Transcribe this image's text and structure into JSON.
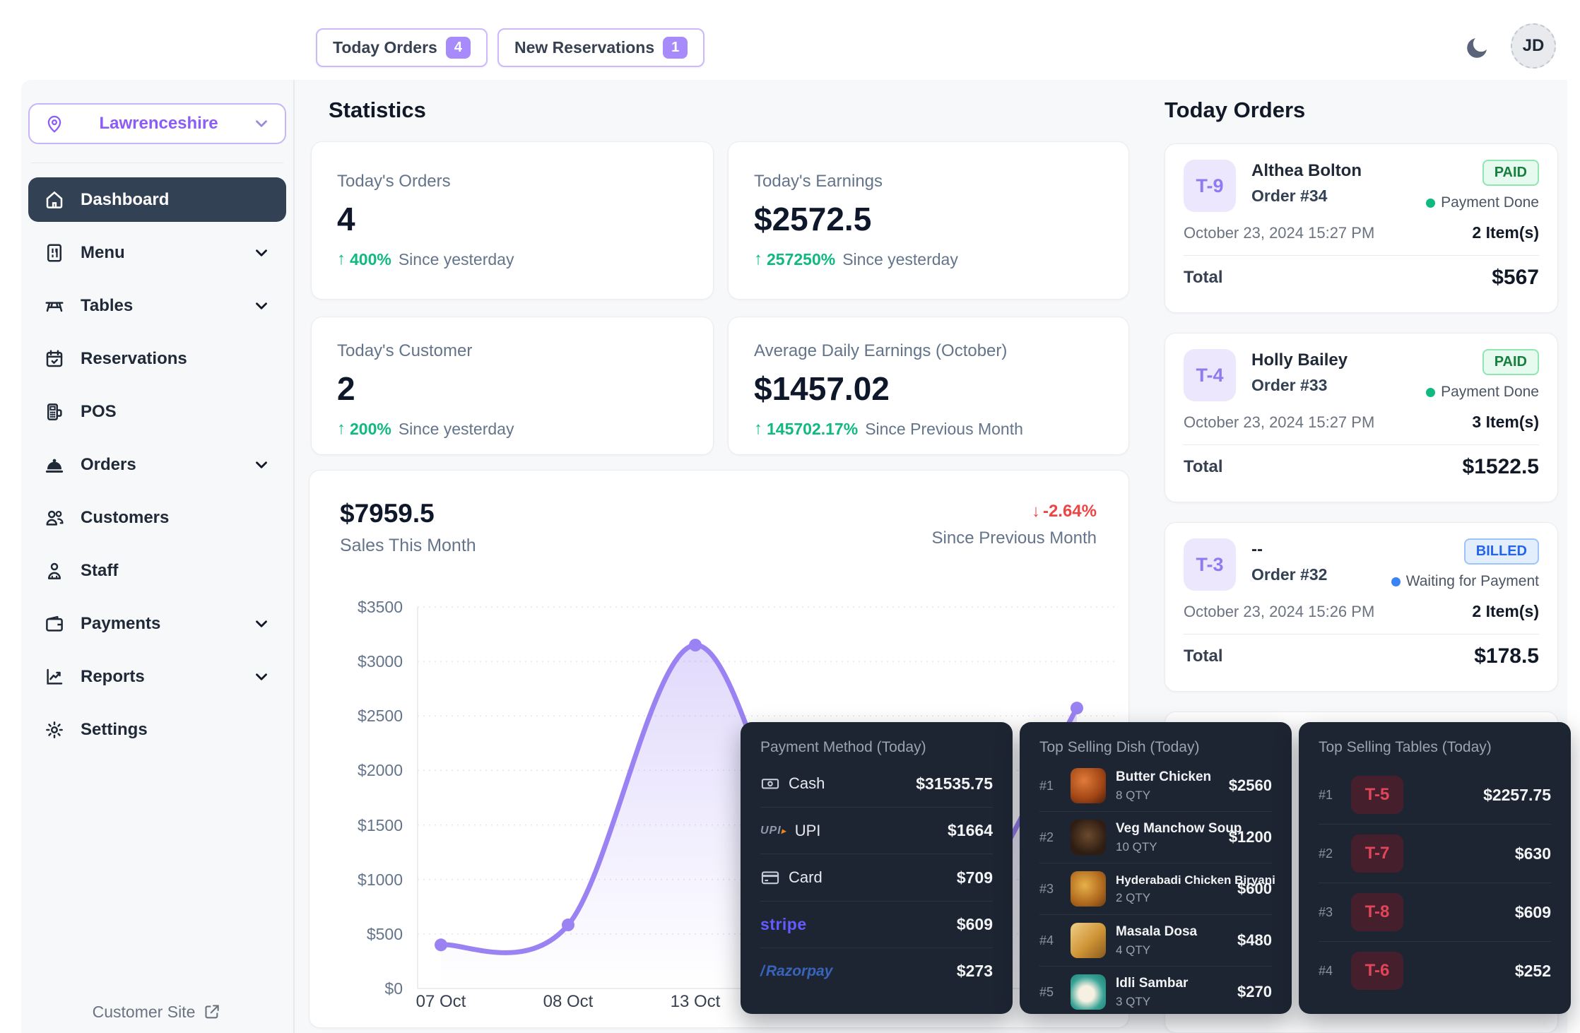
{
  "topbar": {
    "today_orders": {
      "label": "Today Orders",
      "count": "4"
    },
    "new_reservations": {
      "label": "New Reservations",
      "count": "1"
    },
    "avatar": "JD"
  },
  "sidebar": {
    "location": "Lawrenceshire",
    "items": [
      {
        "label": "Dashboard"
      },
      {
        "label": "Menu"
      },
      {
        "label": "Tables"
      },
      {
        "label": "Reservations"
      },
      {
        "label": "POS"
      },
      {
        "label": "Orders"
      },
      {
        "label": "Customers"
      },
      {
        "label": "Staff"
      },
      {
        "label": "Payments"
      },
      {
        "label": "Reports"
      },
      {
        "label": "Settings"
      }
    ],
    "customer_site": "Customer Site"
  },
  "stats": {
    "heading": "Statistics",
    "cards": [
      {
        "label": "Today's Orders",
        "value": "4",
        "delta": "400%",
        "context": "Since yesterday"
      },
      {
        "label": "Today's Earnings",
        "value": "$2572.5",
        "delta": "257250%",
        "context": "Since yesterday"
      },
      {
        "label": "Today's Customer",
        "value": "2",
        "delta": "200%",
        "context": "Since yesterday"
      },
      {
        "label": "Average Daily Earnings (October)",
        "value": "$1457.02",
        "delta": "145702.17%",
        "context": "Since Previous Month"
      }
    ]
  },
  "sales_chart": {
    "total": "$7959.5",
    "subtitle": "Sales This Month",
    "delta": "-2.64%",
    "context": "Since Previous Month"
  },
  "chart_data": {
    "type": "area",
    "title": "Sales This Month",
    "x": [
      "07 Oct",
      "08 Oct",
      "13 Oct",
      "",
      "",
      ""
    ],
    "values": [
      400,
      583,
      3150,
      683,
      571,
      2572.5
    ],
    "y_ticks": [
      "$3500",
      "$3000",
      "$2500",
      "$2000",
      "$1500",
      "$1000",
      "$500",
      "$0"
    ],
    "ylim": [
      0,
      3500
    ],
    "line_color": "#9b82f3",
    "legend": "none",
    "grid": "horizontal-dotted"
  },
  "today_orders": {
    "heading": "Today Orders",
    "orders": [
      {
        "table": "T-9",
        "customer": "Althea Bolton",
        "order_no": "Order #34",
        "status": "PAID",
        "payment_status": "Payment Done",
        "datetime": "October 23, 2024 15:27 PM",
        "items": "2 Item(s)",
        "total_label": "Total",
        "total": "$567"
      },
      {
        "table": "T-4",
        "customer": "Holly Bailey",
        "order_no": "Order #33",
        "status": "PAID",
        "payment_status": "Payment Done",
        "datetime": "October 23, 2024 15:27 PM",
        "items": "3 Item(s)",
        "total_label": "Total",
        "total": "$1522.5"
      },
      {
        "table": "T-3",
        "customer": "--",
        "order_no": "Order #32",
        "status": "BILLED",
        "payment_status": "Waiting for Payment",
        "datetime": "October 23, 2024 15:26 PM",
        "items": "2 Item(s)",
        "total_label": "Total",
        "total": "$178.5"
      }
    ]
  },
  "payment_methods": {
    "title": "Payment Method (Today)",
    "rows": [
      {
        "name": "Cash",
        "value": "$31535.75"
      },
      {
        "name": "UPI",
        "value": "$1664"
      },
      {
        "name": "Card",
        "value": "$709"
      },
      {
        "name": "stripe",
        "value": "$609"
      },
      {
        "name": "Razorpay",
        "value": "$273"
      }
    ]
  },
  "top_dishes": {
    "title": "Top Selling Dish (Today)",
    "rows": [
      {
        "rank": "#1",
        "name": "Butter Chicken",
        "qty": "8 QTY",
        "value": "$2560"
      },
      {
        "rank": "#2",
        "name": "Veg Manchow Soup",
        "qty": "10 QTY",
        "value": "$1200"
      },
      {
        "rank": "#3",
        "name": "Hyderabadi Chicken Biryani",
        "qty": "2 QTY",
        "value": "$600"
      },
      {
        "rank": "#4",
        "name": "Masala Dosa",
        "qty": "4 QTY",
        "value": "$480"
      },
      {
        "rank": "#5",
        "name": "Idli Sambar",
        "qty": "3 QTY",
        "value": "$270"
      }
    ]
  },
  "top_tables": {
    "title": "Top Selling Tables (Today)",
    "rows": [
      {
        "rank": "#1",
        "table": "T-5",
        "value": "$2257.75"
      },
      {
        "rank": "#2",
        "table": "T-7",
        "value": "$630"
      },
      {
        "rank": "#3",
        "table": "T-8",
        "value": "$609"
      },
      {
        "rank": "#4",
        "table": "T-6",
        "value": "$252"
      }
    ]
  },
  "colors": {
    "accent": "#8b5cf6",
    "positive": "#10b981",
    "negative": "#ef4444",
    "paid_text": "#15803d",
    "billed_text": "#2563eb",
    "dark_card": "#1e2532",
    "active_nav": "#334155",
    "chart_line": "#9b82f3"
  }
}
